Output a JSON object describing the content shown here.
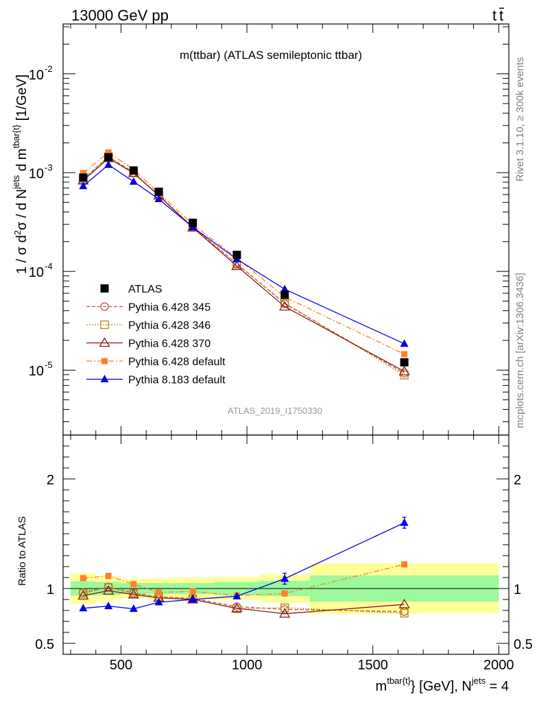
{
  "header": {
    "left": "13000 GeV pp",
    "right_t": "t",
    "right_tbar": "t"
  },
  "main_title": "m(ttbar) (ATLAS semileptonic ttbar)",
  "ylabel_main": "1 / σ d²σ / d N^jets d m^tbar{t} [1/GeV]",
  "ylabel_ratio": "Ratio to ATLAS",
  "xlabel": "m^tbar{t} [GeV], N^jets = 4",
  "watermark": "ATLAS_2019_I1750330",
  "side_text": {
    "rivet": "Rivet 3.1.10, ≥ 300k events",
    "mcplots": "mcplots.cern.ch [arXiv:1306.3436]"
  },
  "colors": {
    "atlas": "#000000",
    "p345": "#c0504d",
    "p346": "#b8860b",
    "p370": "#8b1a1a",
    "p6default": "#ff7f2a",
    "p8default": "#0000e6",
    "band_inner": "#9cf99c",
    "band_outer": "#ffff99"
  },
  "chart_data": {
    "type": "scatter",
    "title": "m(ttbar) (ATLAS semileptonic ttbar)",
    "xlabel": "m^tbar{t} [GeV], N^jets = 4",
    "ylabel": "1 / σ d²σ / d N^jets d m^tbar{t} [1/GeV]",
    "xlim": [
      270,
      2040
    ],
    "ylim": [
      2.2e-06,
      0.032
    ],
    "yscale": "log",
    "ratio_ylim": [
      0.4,
      2.4
    ],
    "xticks": [
      500,
      1000,
      1500,
      2000
    ],
    "xtick_labels": [
      "500",
      "1000",
      "1500",
      "2000"
    ],
    "yticks_main_labels": [
      {
        "mant": "10",
        "exp": "-5",
        "v": 1e-05
      },
      {
        "mant": "10",
        "exp": "-4",
        "v": 0.0001
      },
      {
        "mant": "10",
        "exp": "-3",
        "v": 0.001
      },
      {
        "mant": "10",
        "exp": "-2",
        "v": 0.01
      }
    ],
    "yticks_ratio": [
      0.5,
      1,
      2
    ],
    "yticks_ratio_labels": [
      "0.5",
      "1",
      "2"
    ],
    "legend_position": "lower-left",
    "bins": [
      [
        300,
        400
      ],
      [
        400,
        500
      ],
      [
        500,
        600
      ],
      [
        600,
        700
      ],
      [
        700,
        870
      ],
      [
        870,
        1050
      ],
      [
        1050,
        1250
      ],
      [
        1250,
        2000
      ]
    ],
    "x": [
      350,
      450,
      550,
      650,
      785,
      960,
      1150,
      1625
    ],
    "series": [
      {
        "name": "ATLAS",
        "key": "atlas",
        "style": "data",
        "marker": "square-filled",
        "values": [
          0.00089,
          0.00143,
          0.00105,
          0.00064,
          0.00031,
          0.000147,
          5.8e-05,
          1.2e-05
        ],
        "ratio": [
          1,
          1,
          1,
          1,
          1,
          1,
          1,
          1
        ]
      },
      {
        "name": "Pythia 6.428 345",
        "key": "p345",
        "style": "dashed",
        "marker": "circle-open",
        "values": [
          0.00086,
          0.00146,
          0.001,
          0.00059,
          0.00028,
          0.00012,
          4.7e-05,
          9.3e-06
        ],
        "ratio": [
          0.965,
          1.015,
          0.96,
          0.925,
          0.91,
          0.835,
          0.81,
          0.79
        ]
      },
      {
        "name": "Pythia 6.428 346",
        "key": "p346",
        "style": "dotted",
        "marker": "square-open",
        "values": [
          0.00085,
          0.00145,
          0.001,
          0.00059,
          0.00028,
          0.000118,
          4.8e-05,
          8.9e-06
        ],
        "ratio": [
          0.955,
          1.01,
          0.955,
          0.925,
          0.905,
          0.815,
          0.825,
          0.775
        ]
      },
      {
        "name": "Pythia 6.428 370",
        "key": "p370",
        "style": "solid",
        "marker": "triangle-open",
        "values": [
          0.00083,
          0.0014,
          0.00099,
          0.000585,
          0.000278,
          0.000113,
          4.4e-05,
          9.7e-06
        ],
        "ratio": [
          0.935,
          0.98,
          0.945,
          0.915,
          0.9,
          0.82,
          0.77,
          0.855
        ]
      },
      {
        "name": "Pythia 6.428 default",
        "key": "p6default",
        "style": "dashdot",
        "marker": "square-filled-small",
        "values": [
          0.00099,
          0.0016,
          0.00108,
          0.00062,
          0.0003,
          0.000136,
          5.5e-05,
          1.45e-05
        ],
        "ratio": [
          1.095,
          1.115,
          1.04,
          0.965,
          0.975,
          0.935,
          0.955,
          1.22
        ]
      },
      {
        "name": "Pythia 8.183 default",
        "key": "p8default",
        "style": "solid",
        "marker": "triangle-filled",
        "values": [
          0.00073,
          0.0012,
          0.00081,
          0.00054,
          0.00028,
          0.000133,
          6.6e-05,
          1.85e-05
        ],
        "ratio": [
          0.82,
          0.84,
          0.815,
          0.875,
          0.9,
          0.93,
          1.09,
          1.6
        ],
        "ratio_err": [
          0,
          0,
          0,
          0,
          0,
          0,
          0.05,
          0.05
        ]
      }
    ],
    "ratio_band_inner": [
      0.065,
      0.06,
      0.05,
      0.05,
      0.05,
      0.06,
      0.07,
      0.12
    ],
    "ratio_band_outer": [
      0.14,
      0.11,
      0.09,
      0.095,
      0.1,
      0.105,
      0.13,
      0.23
    ]
  }
}
